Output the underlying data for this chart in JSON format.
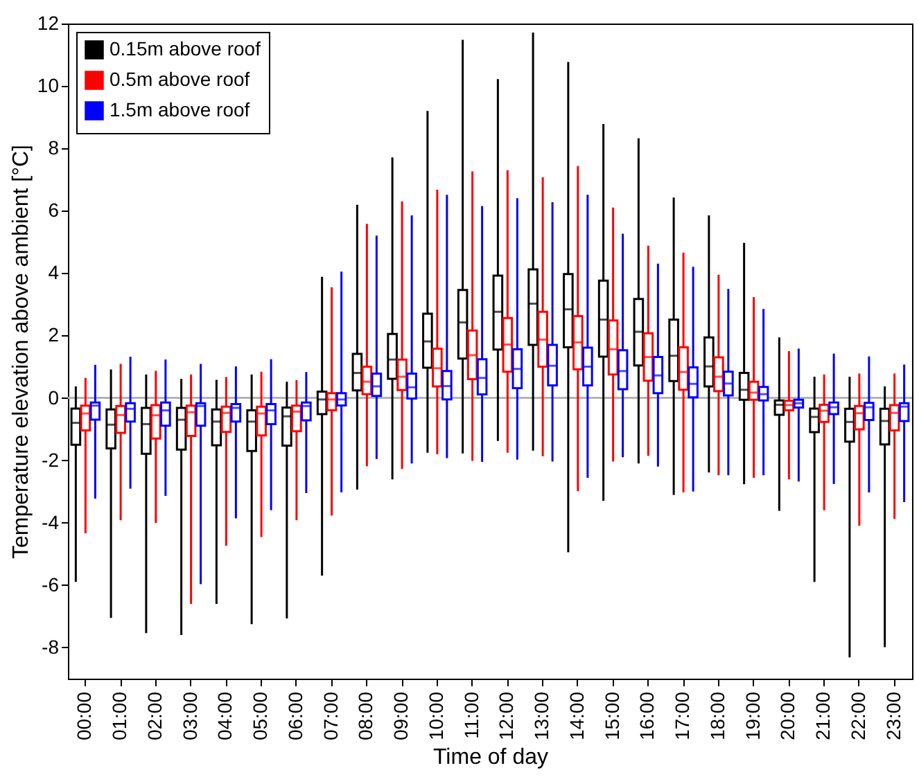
{
  "chart_data": {
    "type": "box",
    "xlabel": "Time of day",
    "ylabel": "Temperature elevation above ambient [°C]",
    "categories": [
      "00:00",
      "01:00",
      "02:00",
      "03:00",
      "04:00",
      "05:00",
      "06:00",
      "07:00",
      "08:00",
      "09:00",
      "10:00",
      "11:00",
      "12:00",
      "13:00",
      "14:00",
      "15:00",
      "16:00",
      "17:00",
      "18:00",
      "19:00",
      "20:00",
      "21:00",
      "22:00",
      "23:00"
    ],
    "ylim": [
      -9,
      12
    ],
    "yticks": [
      -8,
      -6,
      -4,
      -2,
      0,
      2,
      4,
      6,
      8,
      10,
      12
    ],
    "legend": "top left",
    "grid": false,
    "ref_lines": [
      {
        "axis": "y",
        "value": 0,
        "color": "#b3b3b3"
      }
    ],
    "series": [
      {
        "name": "0.15m above roof",
        "color": "#000000",
        "boxes": [
          {
            "low": -5.9,
            "q1": -1.5,
            "median": -0.8,
            "q3": -0.34,
            "high": 0.37
          },
          {
            "low": -7.05,
            "q1": -1.62,
            "median": -0.86,
            "q3": -0.37,
            "high": 0.91
          },
          {
            "low": -7.54,
            "q1": -1.79,
            "median": -0.84,
            "q3": -0.32,
            "high": 0.75
          },
          {
            "low": -7.6,
            "q1": -1.66,
            "median": -0.7,
            "q3": -0.32,
            "high": 0.61
          },
          {
            "low": -6.6,
            "q1": -1.52,
            "median": -0.76,
            "q3": -0.37,
            "high": 0.58
          },
          {
            "low": -7.25,
            "q1": -1.7,
            "median": -0.76,
            "q3": -0.4,
            "high": 0.75
          },
          {
            "low": -7.07,
            "q1": -1.53,
            "median": -0.59,
            "q3": -0.31,
            "high": 0.52
          },
          {
            "low": -5.7,
            "q1": -0.52,
            "median": -0.05,
            "q3": 0.2,
            "high": 3.88
          },
          {
            "low": -2.94,
            "q1": 0.24,
            "median": 0.8,
            "q3": 1.41,
            "high": 6.19
          },
          {
            "low": -2.61,
            "q1": 0.61,
            "median": 1.23,
            "q3": 2.05,
            "high": 7.71
          },
          {
            "low": -1.76,
            "q1": 0.97,
            "median": 1.81,
            "q3": 2.7,
            "high": 9.2
          },
          {
            "low": -1.78,
            "q1": 1.26,
            "median": 2.42,
            "q3": 3.46,
            "high": 11.48
          },
          {
            "low": -1.38,
            "q1": 1.55,
            "median": 2.76,
            "q3": 3.92,
            "high": 10.22
          },
          {
            "low": -1.69,
            "q1": 1.7,
            "median": 3.02,
            "q3": 4.12,
            "high": 11.71
          },
          {
            "low": -4.95,
            "q1": 1.62,
            "median": 2.84,
            "q3": 3.97,
            "high": 10.77
          },
          {
            "low": -3.3,
            "q1": 1.32,
            "median": 2.51,
            "q3": 3.76,
            "high": 8.78
          },
          {
            "low": -2.1,
            "q1": 1.04,
            "median": 2.12,
            "q3": 3.17,
            "high": 8.32
          },
          {
            "low": -3.11,
            "q1": 0.54,
            "median": 1.35,
            "q3": 2.51,
            "high": 6.42
          },
          {
            "low": -2.39,
            "q1": 0.37,
            "median": 1.01,
            "q3": 1.94,
            "high": 5.85
          },
          {
            "low": -2.77,
            "q1": -0.06,
            "median": 0.26,
            "q3": 0.8,
            "high": 4.97
          },
          {
            "low": -3.62,
            "q1": -0.54,
            "median": -0.22,
            "q3": -0.08,
            "high": 1.94
          },
          {
            "low": -5.9,
            "q1": -1.1,
            "median": -0.61,
            "q3": -0.34,
            "high": 0.68
          },
          {
            "low": -8.32,
            "q1": -1.4,
            "median": -0.77,
            "q3": -0.35,
            "high": 0.68
          },
          {
            "low": -7.99,
            "q1": -1.49,
            "median": -0.74,
            "q3": -0.35,
            "high": 0.37
          }
        ]
      },
      {
        "name": "0.5m above roof",
        "color": "#ff0000",
        "boxes": [
          {
            "low": -4.34,
            "q1": -1.04,
            "median": -0.5,
            "q3": -0.25,
            "high": 0.64
          },
          {
            "low": -3.92,
            "q1": -1.12,
            "median": -0.55,
            "q3": -0.26,
            "high": 1.09
          },
          {
            "low": -4.01,
            "q1": -1.3,
            "median": -0.56,
            "q3": -0.23,
            "high": 0.87
          },
          {
            "low": -6.6,
            "q1": -1.22,
            "median": -0.46,
            "q3": -0.25,
            "high": 0.75
          },
          {
            "low": -4.74,
            "q1": -1.09,
            "median": -0.48,
            "q3": -0.28,
            "high": 0.67
          },
          {
            "low": -4.46,
            "q1": -1.2,
            "median": -0.5,
            "q3": -0.28,
            "high": 0.84
          },
          {
            "low": -3.92,
            "q1": -1.07,
            "median": -0.44,
            "q3": -0.25,
            "high": 0.57
          },
          {
            "low": -3.77,
            "q1": -0.4,
            "median": -0.05,
            "q3": 0.15,
            "high": 3.55
          },
          {
            "low": -2.19,
            "q1": 0.12,
            "median": 0.52,
            "q3": 1.0,
            "high": 5.58
          },
          {
            "low": -2.28,
            "q1": 0.25,
            "median": 0.68,
            "q3": 1.23,
            "high": 6.3
          },
          {
            "low": -1.81,
            "q1": 0.37,
            "median": 0.95,
            "q3": 1.58,
            "high": 6.67
          },
          {
            "low": -2.02,
            "q1": 0.6,
            "median": 1.37,
            "q3": 2.16,
            "high": 7.26
          },
          {
            "low": -1.76,
            "q1": 0.84,
            "median": 1.71,
            "q3": 2.56,
            "high": 7.3
          },
          {
            "low": -1.87,
            "q1": 1.0,
            "median": 1.87,
            "q3": 2.76,
            "high": 7.07
          },
          {
            "low": -2.99,
            "q1": 0.92,
            "median": 1.78,
            "q3": 2.62,
            "high": 7.43
          },
          {
            "low": -2.04,
            "q1": 0.75,
            "median": 1.56,
            "q3": 2.48,
            "high": 6.1
          },
          {
            "low": -1.86,
            "q1": 0.55,
            "median": 1.31,
            "q3": 2.07,
            "high": 4.88
          },
          {
            "low": -3.03,
            "q1": 0.26,
            "median": 0.83,
            "q3": 1.62,
            "high": 4.66
          },
          {
            "low": -2.48,
            "q1": 0.22,
            "median": 0.68,
            "q3": 1.3,
            "high": 3.95
          },
          {
            "low": -2.56,
            "q1": -0.06,
            "median": 0.17,
            "q3": 0.52,
            "high": 3.23
          },
          {
            "low": -2.61,
            "q1": -0.4,
            "median": -0.23,
            "q3": -0.09,
            "high": 1.5
          },
          {
            "low": -3.6,
            "q1": -0.77,
            "median": -0.41,
            "q3": -0.22,
            "high": 0.75
          },
          {
            "low": -4.1,
            "q1": -1.01,
            "median": -0.49,
            "q3": -0.26,
            "high": 0.78
          },
          {
            "low": -3.88,
            "q1": -1.04,
            "median": -0.48,
            "q3": -0.23,
            "high": 0.78
          }
        ]
      },
      {
        "name": "1.5m above roof",
        "color": "#0000ff",
        "boxes": [
          {
            "low": -3.23,
            "q1": -0.7,
            "median": -0.25,
            "q3": -0.15,
            "high": 1.06
          },
          {
            "low": -2.91,
            "q1": -0.76,
            "median": -0.35,
            "q3": -0.17,
            "high": 1.32
          },
          {
            "low": -3.14,
            "q1": -0.89,
            "median": -0.4,
            "q3": -0.15,
            "high": 1.23
          },
          {
            "low": -5.97,
            "q1": -0.89,
            "median": -0.26,
            "q3": -0.17,
            "high": 1.09
          },
          {
            "low": -3.86,
            "q1": -0.76,
            "median": -0.32,
            "q3": -0.2,
            "high": 1.01
          },
          {
            "low": -3.6,
            "q1": -0.84,
            "median": -0.4,
            "q3": -0.2,
            "high": 1.24
          },
          {
            "low": -3.05,
            "q1": -0.72,
            "median": -0.26,
            "q3": -0.15,
            "high": 0.83
          },
          {
            "low": -3.03,
            "q1": -0.24,
            "median": -0.05,
            "q3": 0.15,
            "high": 4.05
          },
          {
            "low": -1.96,
            "q1": 0.06,
            "median": 0.37,
            "q3": 0.78,
            "high": 5.2
          },
          {
            "low": -2.1,
            "q1": -0.02,
            "median": 0.34,
            "q3": 0.78,
            "high": 5.85
          },
          {
            "low": -1.93,
            "q1": -0.05,
            "median": 0.38,
            "q3": 0.86,
            "high": 6.51
          },
          {
            "low": -2.05,
            "q1": 0.11,
            "median": 0.64,
            "q3": 1.24,
            "high": 6.15
          },
          {
            "low": -1.98,
            "q1": 0.31,
            "median": 0.93,
            "q3": 1.56,
            "high": 6.4
          },
          {
            "low": -2.04,
            "q1": 0.4,
            "median": 1.03,
            "q3": 1.7,
            "high": 6.27
          },
          {
            "low": -2.56,
            "q1": 0.4,
            "median": 1.0,
            "q3": 1.61,
            "high": 6.51
          },
          {
            "low": -1.9,
            "q1": 0.28,
            "median": 0.86,
            "q3": 1.53,
            "high": 5.26
          },
          {
            "low": -2.2,
            "q1": 0.15,
            "median": 0.72,
            "q3": 1.31,
            "high": 4.3
          },
          {
            "low": -3.0,
            "q1": 0.02,
            "median": 0.45,
            "q3": 0.98,
            "high": 4.2
          },
          {
            "low": -2.48,
            "q1": 0.08,
            "median": 0.46,
            "q3": 0.84,
            "high": 3.49
          },
          {
            "low": -2.48,
            "q1": -0.08,
            "median": 0.12,
            "q3": 0.35,
            "high": 2.85
          },
          {
            "low": -2.68,
            "q1": -0.31,
            "median": -0.17,
            "q3": -0.06,
            "high": 1.58
          },
          {
            "low": -2.76,
            "q1": -0.52,
            "median": -0.3,
            "q3": -0.15,
            "high": 1.42
          },
          {
            "low": -3.03,
            "q1": -0.71,
            "median": -0.3,
            "q3": -0.16,
            "high": 1.33
          },
          {
            "low": -3.34,
            "q1": -0.74,
            "median": -0.28,
            "q3": -0.17,
            "high": 1.07
          }
        ]
      }
    ]
  }
}
